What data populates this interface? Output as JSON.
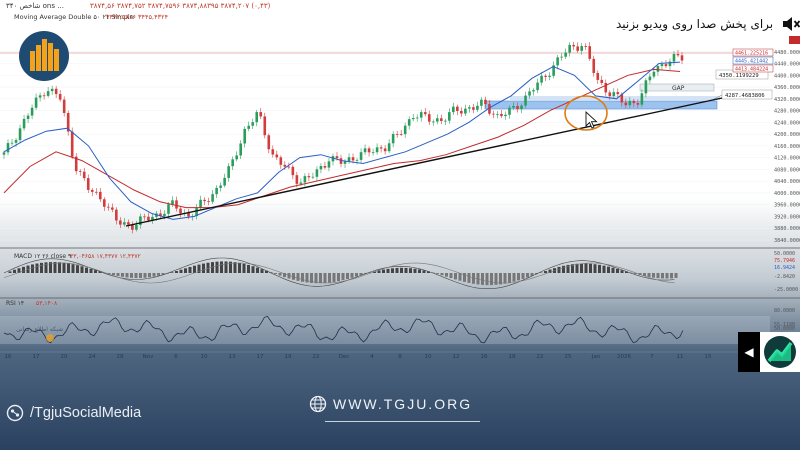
{
  "video": {
    "unmute_text": "برای پخش صدا روی ویدیو بزنید",
    "unmute_icon": "muted-speaker-icon"
  },
  "chart_header": {
    "line1": "شاخص ۳۴۰ ons ...",
    "ohlc": "۳۸۷۴,۵۶ ۳۸۷۴,۷۵۲ ۳۸۷۴,۷۵۹۶ ۳۸۷۴,۸۸۳۹۵ ۳۸۷۴,۲۰۷ (۰,۴۳)",
    "indicator": "Moving Average Double ۵۰ ۲۱ Simple",
    "indicator_values": "۳۴۳۲,۵۸۶۶  ۳۴۴۵,۴۳۲۴"
  },
  "price_scale": [
    "4480.000000",
    "4440.000000",
    "4400.000000",
    "4360.000000",
    "4320.000000",
    "4280.000000",
    "4240.000000",
    "4200.000000",
    "4160.000000",
    "4120.000000",
    "4080.000000",
    "4040.000000",
    "4000.000000",
    "3960.000000",
    "3920.000000",
    "3880.000000",
    "3840.000000"
  ],
  "price_tags": {
    "last": "4461.225216",
    "ma_fast": "4445.421442",
    "ma_slow": "4413.484224",
    "level_upper": "4350.1199229",
    "level_lower": "4287.4683806",
    "gap": "GAP"
  },
  "macd": {
    "label": "MACD ۱۲ ۲۶ close ۹",
    "values": "۳۳,۰۴۶۵۸  ۱۷,۴۳۷۷  ۱۲,۴۳۷۲",
    "scale": [
      "50.0000",
      "75.7946",
      "16.9424",
      "-2.8420",
      "-25.0000"
    ]
  },
  "rsi": {
    "label": "RSI ۱۴",
    "value_text": "۵۳,۱۴۰۸",
    "scale": [
      "80.0000",
      "50.0000",
      "55.1188"
    ]
  },
  "time_axis": [
    "16",
    "17",
    "20",
    "24",
    "28",
    "Nov",
    "6",
    "10",
    "13",
    "17",
    "19",
    "22",
    "Dec",
    "4",
    "8",
    "10",
    "12",
    "16",
    "18",
    "22",
    "25",
    "Jan",
    "2026",
    "7",
    "11",
    "15"
  ],
  "footer": {
    "social_handle": "/TgjuSocialMedia",
    "website": "WWW.TGJU.ORG",
    "watermark": "شبکه اطلاع رسانی"
  },
  "colors": {
    "bull": "#2a9d5c",
    "bear": "#d23c3c",
    "ma_fast": "#2b5fc4",
    "ma_slow": "#c42b2b",
    "zone": "#9cc3f0",
    "brand": "#1f4a72",
    "accent": "#f2a31b"
  },
  "chart_data": {
    "type": "candlestick",
    "y_range": [
      3840,
      4520
    ],
    "ohlc_close_trend": [
      4130,
      4210,
      4290,
      4360,
      4320,
      4100,
      4010,
      3980,
      3900,
      3890,
      3910,
      3930,
      3960,
      3920,
      3960,
      4010,
      4080,
      4210,
      4270,
      4130,
      4080,
      4040,
      4060,
      4120,
      4100,
      4130,
      4140,
      4160,
      4200,
      4270,
      4250,
      4250,
      4280,
      4290,
      4300,
      4260,
      4280,
      4330,
      4380,
      4440,
      4490,
      4510,
      4380,
      4340,
      4300,
      4320,
      4420,
      4450,
      4460
    ],
    "ma_fast_trend": [
      4140,
      4180,
      4210,
      4220,
      4160,
      4050,
      3970,
      3930,
      3910,
      3920,
      3950,
      3980,
      4000,
      4070,
      4120,
      4130,
      4110,
      4100,
      4120,
      4140,
      4170,
      4200,
      4240,
      4290,
      4330,
      4390,
      4430,
      4400,
      4330,
      4320,
      4380,
      4440,
      4445
    ],
    "ma_slow_trend": [
      4000,
      4090,
      4140,
      4110,
      4060,
      4010,
      3970,
      3950,
      3950,
      3960,
      3990,
      4020,
      4040,
      4060,
      4080,
      4100,
      4110,
      4130,
      4160,
      4190,
      4230,
      4280,
      4320,
      4360,
      4400,
      4420,
      4413
    ],
    "trendline": [
      [
        0,
        3880
      ],
      [
        1,
        4285
      ]
    ],
    "zone": [
      4287,
      4300
    ]
  }
}
